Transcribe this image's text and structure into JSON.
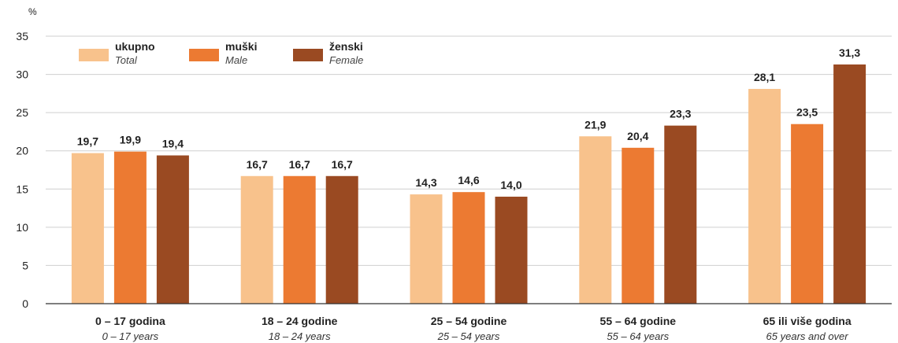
{
  "chart_data": {
    "type": "bar",
    "ylabel": "%",
    "ylim": [
      0,
      35
    ],
    "yticks": [
      0,
      5,
      10,
      15,
      20,
      25,
      30,
      35
    ],
    "grid": true,
    "legend_position": "top-left",
    "categories": [
      {
        "label": "0  – 17 godina",
        "label_en": "0 – 17 years"
      },
      {
        "label": "18  – 24 godine",
        "label_en": "18 – 24 years"
      },
      {
        "label": "25  – 54 godine",
        "label_en": "25 – 54 years"
      },
      {
        "label": "55  – 64 godine",
        "label_en": "55 – 64 years"
      },
      {
        "label": "65 ili više godina",
        "label_en": "65 years and over"
      }
    ],
    "series": [
      {
        "name": "ukupno",
        "name_en": "Total",
        "color": "#f8c28c",
        "values": [
          19.7,
          16.7,
          14.3,
          21.9,
          28.1
        ],
        "labels": [
          "19,7",
          "16,7",
          "14,3",
          "21,9",
          "28,1"
        ]
      },
      {
        "name": "muški",
        "name_en": "Male",
        "color": "#ec7a32",
        "values": [
          19.9,
          16.7,
          14.6,
          20.4,
          23.5
        ],
        "labels": [
          "19,9",
          "16,7",
          "14,6",
          "20,4",
          "23,5"
        ]
      },
      {
        "name": "ženski",
        "name_en": "Female",
        "color": "#9a4a22",
        "values": [
          19.4,
          16.7,
          14.0,
          23.3,
          31.3
        ],
        "labels": [
          "19,4",
          "16,7",
          "14,0",
          "23,3",
          "31,3"
        ]
      }
    ]
  }
}
